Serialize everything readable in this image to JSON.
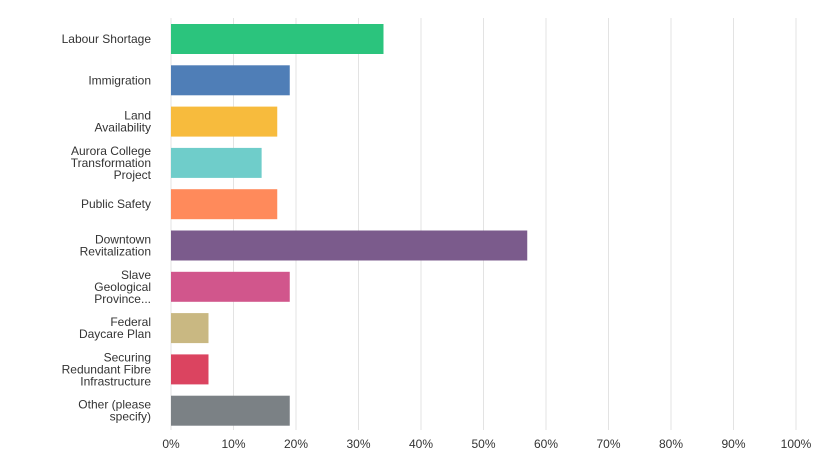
{
  "chart_data": {
    "type": "bar",
    "orientation": "horizontal",
    "categories": [
      "Labour Shortage",
      "Immigration",
      "Land Availability",
      "Aurora College Transformation Project",
      "Public Safety",
      "Downtown Revitalization",
      "Slave Geological Province...",
      "Federal Daycare Plan",
      "Securing Redundant Fibre Infrastructure",
      "Other (please specify)"
    ],
    "category_label_lines": [
      [
        "Labour Shortage"
      ],
      [
        "Immigration"
      ],
      [
        "Land",
        "Availability"
      ],
      [
        "Aurora College",
        "Transformation",
        "Project"
      ],
      [
        "Public Safety"
      ],
      [
        "Downtown",
        "Revitalization"
      ],
      [
        "Slave",
        "Geological",
        "Province..."
      ],
      [
        "Federal",
        "Daycare Plan"
      ],
      [
        "Securing",
        "Redundant Fibre",
        "Infrastructure"
      ],
      [
        "Other (please",
        "specify)"
      ]
    ],
    "values": [
      34,
      19,
      17,
      14.5,
      17,
      57,
      19,
      6,
      6,
      19
    ],
    "colors": [
      "#2bc47d",
      "#4f7eb7",
      "#f7bb3d",
      "#6fcdca",
      "#ff8a5b",
      "#7b5b8c",
      "#d1568c",
      "#c9b882",
      "#db4460",
      "#7b8185"
    ],
    "xlim": [
      0,
      100
    ],
    "x_ticks": [
      "0%",
      "10%",
      "20%",
      "30%",
      "40%",
      "50%",
      "60%",
      "70%",
      "80%",
      "90%",
      "100%"
    ],
    "unit": "%",
    "grid": true
  }
}
